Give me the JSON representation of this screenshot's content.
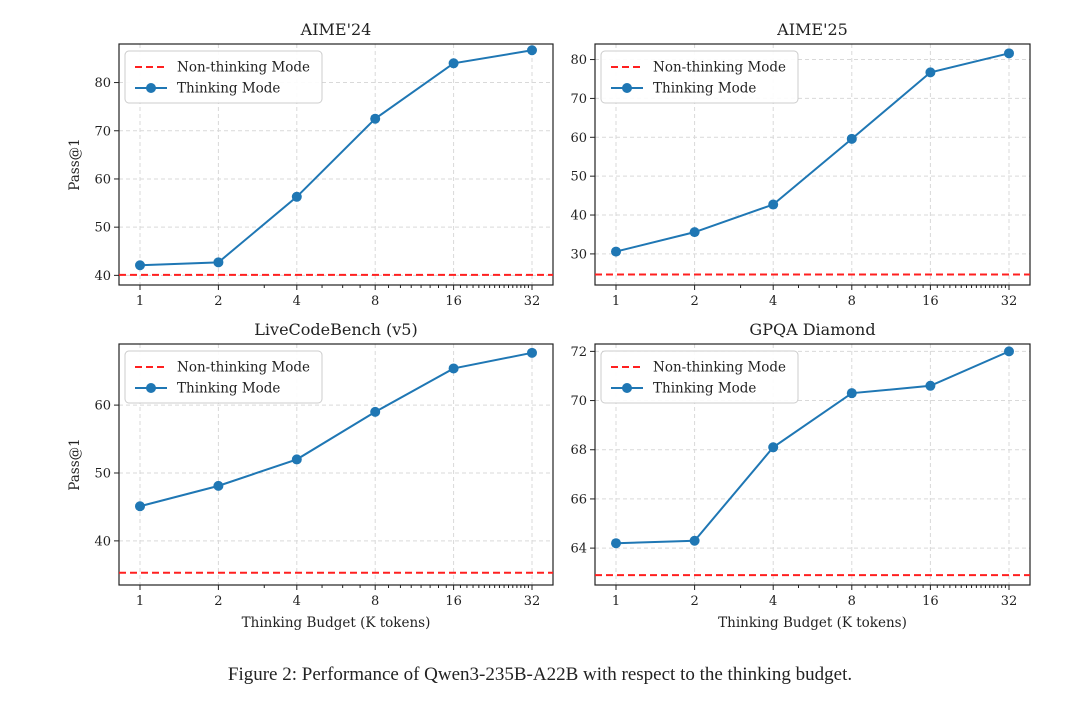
{
  "caption": "Figure 2: Performance of Qwen3-235B-A22B with respect to the thinking budget.",
  "colors": {
    "thinking": "#1f77b4",
    "non_thinking": "#ff2020"
  },
  "chart_data": [
    {
      "type": "line",
      "title": "AIME'24",
      "xlabel": "",
      "ylabel": "Pass@1",
      "xscale": "log2",
      "categories": [
        "1",
        "2",
        "4",
        "8",
        "16",
        "32"
      ],
      "x": [
        1,
        2,
        4,
        8,
        16,
        32
      ],
      "ylim": [
        38,
        88
      ],
      "yticks": [
        "40",
        "50",
        "60",
        "70",
        "80"
      ],
      "grid": true,
      "legend": "top-left",
      "series": [
        {
          "name": "Non-thinking Mode",
          "style": "dashed",
          "value": 40.1
        },
        {
          "name": "Thinking Mode",
          "style": "line-marker",
          "values": [
            42.1,
            42.7,
            56.3,
            72.5,
            84.0,
            86.7
          ]
        }
      ]
    },
    {
      "type": "line",
      "title": "AIME'25",
      "xlabel": "",
      "ylabel": "",
      "xscale": "log2",
      "categories": [
        "1",
        "2",
        "4",
        "8",
        "16",
        "32"
      ],
      "x": [
        1,
        2,
        4,
        8,
        16,
        32
      ],
      "ylim": [
        22,
        84
      ],
      "yticks": [
        "30",
        "40",
        "50",
        "60",
        "70",
        "80"
      ],
      "grid": true,
      "legend": "top-left",
      "series": [
        {
          "name": "Non-thinking Mode",
          "style": "dashed",
          "value": 24.7
        },
        {
          "name": "Thinking Mode",
          "style": "line-marker",
          "values": [
            30.6,
            35.6,
            42.7,
            59.6,
            76.7,
            81.6
          ]
        }
      ]
    },
    {
      "type": "line",
      "title": "LiveCodeBench (v5)",
      "xlabel": "Thinking Budget (K tokens)",
      "ylabel": "Pass@1",
      "xscale": "log2",
      "categories": [
        "1",
        "2",
        "4",
        "8",
        "16",
        "32"
      ],
      "x": [
        1,
        2,
        4,
        8,
        16,
        32
      ],
      "ylim": [
        33.5,
        69
      ],
      "yticks": [
        "40",
        "50",
        "60"
      ],
      "grid": true,
      "legend": "top-left",
      "series": [
        {
          "name": "Non-thinking Mode",
          "style": "dashed",
          "value": 35.3
        },
        {
          "name": "Thinking Mode",
          "style": "line-marker",
          "values": [
            45.1,
            48.1,
            52.0,
            59.0,
            65.4,
            67.7
          ]
        }
      ]
    },
    {
      "type": "line",
      "title": "GPQA Diamond",
      "xlabel": "Thinking Budget (K tokens)",
      "ylabel": "",
      "xscale": "log2",
      "categories": [
        "1",
        "2",
        "4",
        "8",
        "16",
        "32"
      ],
      "x": [
        1,
        2,
        4,
        8,
        16,
        32
      ],
      "ylim": [
        62.5,
        72.3
      ],
      "yticks": [
        "64",
        "66",
        "68",
        "70",
        "72"
      ],
      "grid": true,
      "legend": "top-left",
      "series": [
        {
          "name": "Non-thinking Mode",
          "style": "dashed",
          "value": 62.9
        },
        {
          "name": "Thinking Mode",
          "style": "line-marker",
          "values": [
            64.2,
            64.3,
            68.1,
            70.3,
            70.6,
            72.0
          ]
        }
      ]
    }
  ]
}
